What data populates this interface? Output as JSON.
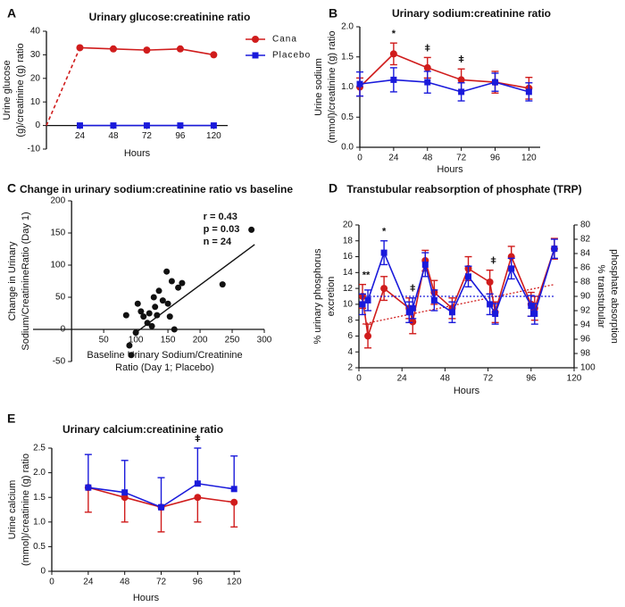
{
  "chart_data": [
    {
      "type": "line",
      "label": "A",
      "title": "Urinary glucose:creatinine ratio",
      "ylabel": [
        "Urine glucose",
        "(g)/creatinine (g) ratio"
      ],
      "xlabel": "Hours",
      "xlim": [
        0,
        130
      ],
      "xticks": [
        24,
        48,
        72,
        96,
        120
      ],
      "ylim": [
        -10,
        40
      ],
      "yticks": [
        -10,
        0,
        10,
        20,
        30,
        40
      ],
      "legend": "right",
      "series": [
        {
          "name": "Cana",
          "color": "#d01c1c",
          "marker": "circle",
          "dashed_to_x": 24,
          "x": [
            0,
            24,
            48,
            72,
            96,
            120
          ],
          "values": [
            0,
            33,
            32.5,
            32,
            32.5,
            30
          ]
        },
        {
          "name": "Placebo",
          "color": "#1a1adb",
          "marker": "square",
          "x": [
            24,
            48,
            72,
            96,
            120
          ],
          "values": [
            0,
            0,
            0,
            0,
            0
          ]
        }
      ]
    },
    {
      "type": "line",
      "label": "B",
      "title": "Urinary sodium:creatinine ratio",
      "ylabel": [
        "Urine sodium",
        "(mmol)/creatinine (g) ratio"
      ],
      "xlabel": "Hours",
      "xlim": [
        0,
        128
      ],
      "xticks": [
        0,
        24,
        48,
        72,
        96,
        120
      ],
      "ylim": [
        0,
        2
      ],
      "yticks": [
        {
          "value": 0,
          "label": "0.0"
        },
        0.5,
        {
          "value": 1,
          "label": "1.0"
        },
        1.5,
        {
          "value": 2,
          "label": "2.0"
        }
      ],
      "series": [
        {
          "name": "Cana",
          "color": "#d01c1c",
          "marker": "circle",
          "x": [
            0,
            24,
            48,
            72,
            96,
            120
          ],
          "values": [
            1.0,
            1.55,
            1.32,
            1.12,
            1.08,
            0.98
          ],
          "errors": [
            0.15,
            0.18,
            0.17,
            0.18,
            0.18,
            0.18
          ],
          "error_direction": "both"
        },
        {
          "name": "Placebo",
          "color": "#1a1adb",
          "marker": "square",
          "x": [
            0,
            24,
            48,
            72,
            96,
            120
          ],
          "values": [
            1.05,
            1.12,
            1.08,
            0.92,
            1.08,
            0.92
          ],
          "errors": [
            0.2,
            0.2,
            0.18,
            0.15,
            0.15,
            0.15
          ],
          "error_direction": "both"
        }
      ],
      "annotations": [
        {
          "text": "*",
          "x": 24
        },
        {
          "text": "ǂ",
          "x": 48
        },
        {
          "text": "ǂ",
          "x": 72
        }
      ]
    },
    {
      "type": "scatter",
      "label": "C",
      "title": "Change in urinary sodium:creatinine ratio vs baseline",
      "ylabel": [
        "Change in Urinary",
        "Sodium/CreatinineRatio (Day 1)"
      ],
      "xlabel": [
        "Baseline Urinary Sodium/Creatinine",
        "Ratio (Day 1; Placebo)"
      ],
      "xlim": [
        -60,
        300
      ],
      "xticks": [
        50,
        100,
        150,
        200,
        250,
        300
      ],
      "ylim": [
        -50,
        200
      ],
      "yticks": [
        -50,
        0,
        50,
        100,
        150,
        200
      ],
      "stats": [
        "r = 0.43",
        "p = 0.03",
        "n = 24"
      ],
      "series": [
        {
          "color": "#111111",
          "marker": "circle",
          "x": [
            85,
            90,
            93,
            100,
            103,
            108,
            112,
            118,
            121,
            125,
            128,
            130,
            133,
            136,
            142,
            148,
            150,
            153,
            156,
            160,
            166,
            172,
            235,
            280
          ],
          "values": [
            22,
            -25,
            -40,
            -5,
            40,
            28,
            20,
            10,
            25,
            5,
            50,
            35,
            22,
            60,
            45,
            90,
            40,
            20,
            75,
            0,
            65,
            72,
            70,
            155
          ]
        }
      ],
      "fit": {
        "x": [
          100,
          285
        ],
        "values": [
          -5,
          132
        ]
      }
    },
    {
      "type": "line",
      "label": "D",
      "title": "Transtubular reabsorption of phosphate (TRP)",
      "ylabel": [
        "% urinary phosphorus",
        "excretion"
      ],
      "y2label": [
        "% transtubular",
        "phosphate absorption"
      ],
      "xlabel": "Hours",
      "xlim": [
        0,
        120
      ],
      "xticks": [
        0,
        24,
        48,
        72,
        96,
        120
      ],
      "ylim": [
        2,
        20
      ],
      "yticks": [
        2,
        4,
        6,
        8,
        10,
        12,
        14,
        16,
        18,
        20
      ],
      "y2lim": [
        100,
        80
      ],
      "y2ticks": [
        80,
        82,
        84,
        86,
        88,
        90,
        92,
        94,
        96,
        98,
        100
      ],
      "series": [
        {
          "name": "Cana",
          "color": "#d01c1c",
          "marker": "circle",
          "x": [
            2,
            5,
            14,
            28,
            30,
            37,
            42,
            52,
            61,
            73,
            76,
            85,
            96,
            98,
            109
          ],
          "values": [
            11,
            6,
            12,
            9.5,
            7.8,
            15.5,
            11.5,
            9.5,
            14.5,
            12.8,
            9,
            16,
            10,
            9.5,
            17
          ],
          "errors": [
            1.5,
            1.5,
            1.5,
            1.3,
            1.5,
            1.3,
            1.5,
            1.3,
            1.5,
            1.5,
            1.3,
            1.3,
            1.5,
            1.5,
            1.3
          ],
          "error_direction": "both",
          "trend": {
            "x": [
              2,
              109
            ],
            "values": [
              7.5,
              12.5
            ]
          }
        },
        {
          "name": "Placebo",
          "color": "#1a1adb",
          "marker": "square",
          "x": [
            2,
            5,
            14,
            28,
            30,
            37,
            42,
            52,
            61,
            73,
            76,
            85,
            96,
            98,
            109
          ],
          "values": [
            10,
            10.5,
            16.5,
            9,
            9.5,
            15,
            10.5,
            9,
            13.5,
            10,
            8.8,
            14.5,
            9.8,
            8.8,
            17
          ],
          "errors": [
            1.3,
            1.3,
            1.5,
            1.3,
            1.3,
            1.5,
            1.3,
            1.3,
            1.3,
            1.3,
            1.3,
            1.3,
            1.3,
            1.3,
            1.2
          ],
          "error_direction": "both",
          "trend": {
            "x": [
              2,
              109
            ],
            "values": [
              11,
              11
            ]
          }
        }
      ],
      "annotations": [
        {
          "text": "**",
          "x": 4
        },
        {
          "text": "*",
          "x": 14
        },
        {
          "text": "ǂ",
          "x": 30
        },
        {
          "text": "ǂ",
          "x": 75
        }
      ]
    },
    {
      "type": "line",
      "label": "E",
      "title": "Urinary calcium:creatinine ratio",
      "ylabel": [
        "Urine calcium",
        "(mmol)/creatinine (g) ratio"
      ],
      "xlabel": "Hours",
      "xlim": [
        0,
        124
      ],
      "xticks": [
        0,
        24,
        48,
        72,
        96,
        120
      ],
      "ylim": [
        0,
        2.5
      ],
      "yticks": [
        0,
        0.5,
        {
          "value": 1,
          "label": "1.0"
        },
        1.5,
        {
          "value": 2,
          "label": "2.0"
        },
        2.5
      ],
      "series": [
        {
          "name": "Cana",
          "color": "#d01c1c",
          "marker": "circle",
          "x": [
            24,
            48,
            72,
            96,
            120
          ],
          "values": [
            1.7,
            1.5,
            1.3,
            1.5,
            1.4
          ],
          "errors": [
            0.5,
            0.5,
            0.5,
            0.5,
            0.5
          ],
          "error_direction": "down"
        },
        {
          "name": "Placebo",
          "color": "#1a1adb",
          "marker": "square",
          "x": [
            24,
            48,
            72,
            96,
            120
          ],
          "values": [
            1.7,
            1.6,
            1.3,
            1.78,
            1.67
          ],
          "errors": [
            0.67,
            0.65,
            0.6,
            0.72,
            0.67
          ],
          "error_direction": "up"
        }
      ],
      "annotations": [
        {
          "text": "ǂ",
          "x": 96
        }
      ]
    }
  ]
}
